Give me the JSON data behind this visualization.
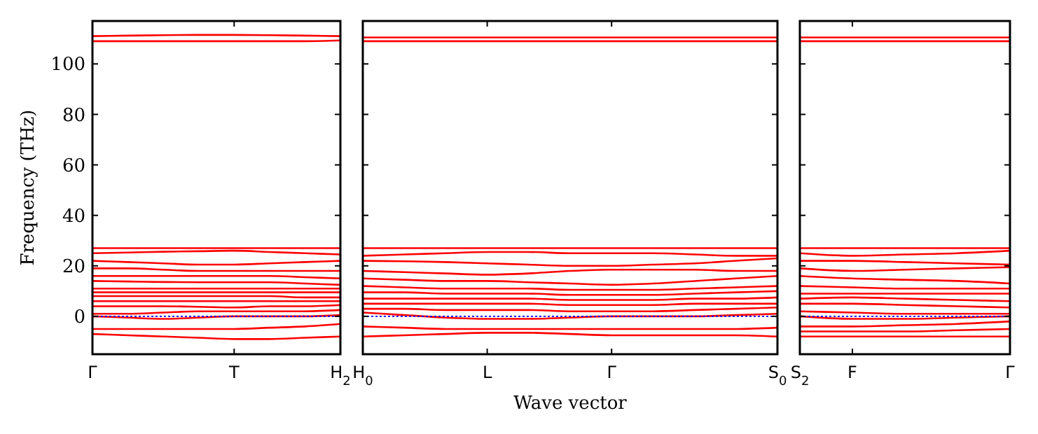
{
  "chart_data": [
    {
      "type": "line",
      "ylabel": "Frequency (THz)",
      "categories": [
        "Γ",
        null,
        null,
        null,
        "T",
        null,
        null,
        "H$_{2}$"
      ],
      "ylim": [
        -15,
        117
      ],
      "yticks": [
        0,
        20,
        40,
        60,
        80,
        100
      ],
      "ref_lines": [
        {
          "axis": "y",
          "value": 0,
          "color": "#0000ff",
          "line_style": "dotted"
        }
      ],
      "series": [
        {
          "color": "#ff0000",
          "values": [
            111,
            111.2,
            111.4,
            111.5,
            111.5,
            111.4,
            111.2,
            111
          ]
        },
        {
          "color": "#ff0000",
          "values": [
            109,
            109,
            109,
            109,
            109,
            109,
            109,
            109.3
          ]
        },
        {
          "color": "#ff0000",
          "values": [
            27,
            27,
            27,
            27,
            27,
            27,
            27,
            27
          ]
        },
        {
          "color": "#ff0000",
          "values": [
            25,
            25.3,
            25.6,
            25.8,
            26,
            25.5,
            25,
            24.5
          ]
        },
        {
          "color": "#ff0000",
          "values": [
            22,
            21.5,
            21,
            20.5,
            20.5,
            21,
            21.5,
            22
          ]
        },
        {
          "color": "#ff0000",
          "values": [
            19,
            19,
            18.5,
            18,
            18,
            18,
            18,
            18
          ]
        },
        {
          "color": "#ff0000",
          "values": [
            16,
            16,
            16,
            16,
            16,
            16,
            15.5,
            15
          ]
        },
        {
          "color": "#ff0000",
          "values": [
            14,
            13.8,
            13.6,
            13.5,
            13.5,
            13.5,
            13,
            12.5
          ]
        },
        {
          "color": "#ff0000",
          "values": [
            11,
            11,
            11,
            11,
            11,
            11,
            11,
            11
          ]
        },
        {
          "color": "#ff0000",
          "values": [
            9.5,
            9.5,
            9.5,
            9.5,
            9.5,
            9.5,
            9.5,
            9.5
          ]
        },
        {
          "color": "#ff0000",
          "values": [
            8,
            8,
            8,
            8,
            8,
            8,
            7.5,
            7.5
          ]
        },
        {
          "color": "#ff0000",
          "values": [
            6,
            6,
            6,
            6,
            6,
            6,
            6,
            6
          ]
        },
        {
          "color": "#ff0000",
          "values": [
            4,
            4,
            4,
            3.8,
            3.5,
            4,
            4,
            4.5
          ]
        },
        {
          "color": "#ff0000",
          "values": [
            1,
            1,
            1.5,
            2,
            2,
            2,
            2,
            2.5
          ]
        },
        {
          "color": "#ff0000",
          "values": [
            0,
            -0.5,
            -1,
            -0.5,
            0,
            0,
            0,
            0.5
          ]
        },
        {
          "color": "#ff0000",
          "values": [
            -5,
            -5,
            -5,
            -5,
            -5,
            -4.5,
            -4,
            -3
          ]
        },
        {
          "color": "#ff0000",
          "values": [
            -7,
            -7.5,
            -8,
            -8.5,
            -9,
            -9,
            -8.5,
            -8
          ]
        }
      ]
    },
    {
      "type": "line",
      "xlabel": "Wave vector",
      "tick_labels": "x",
      "categories": [
        "H$_{0}$",
        null,
        null,
        "L",
        null,
        null,
        "Γ",
        null,
        null,
        null,
        "S$_{0}$"
      ],
      "ylim": [
        -15,
        117
      ],
      "yticks": [
        0,
        20,
        40,
        60,
        80,
        100
      ],
      "ref_lines": [
        {
          "axis": "y",
          "value": 0,
          "color": "#0000ff",
          "line_style": "dotted"
        }
      ],
      "series": [
        {
          "color": "#ff0000",
          "values": [
            110.5,
            110.5,
            110.5,
            110.5,
            110.5,
            110.5,
            110.5,
            110.5,
            110.5,
            110.5,
            110.5
          ]
        },
        {
          "color": "#ff0000",
          "values": [
            109,
            109,
            109,
            109,
            109,
            109,
            109,
            109,
            109,
            109,
            109
          ]
        },
        {
          "color": "#ff0000",
          "values": [
            27,
            27,
            27,
            27,
            27,
            27,
            27,
            27,
            27,
            27,
            27
          ]
        },
        {
          "color": "#ff0000",
          "values": [
            24,
            24.5,
            25,
            25.5,
            25.5,
            25,
            25,
            25,
            24.5,
            24,
            24
          ]
        },
        {
          "color": "#ff0000",
          "values": [
            22,
            21.8,
            21.5,
            21,
            20.5,
            20,
            20,
            20.5,
            21,
            22,
            23
          ]
        },
        {
          "color": "#ff0000",
          "values": [
            18,
            17.5,
            17,
            16.5,
            17,
            18,
            18.5,
            18.5,
            18.5,
            18,
            18
          ]
        },
        {
          "color": "#ff0000",
          "values": [
            15,
            14.5,
            14,
            14,
            13.5,
            13,
            12.5,
            13,
            14,
            15,
            16
          ]
        },
        {
          "color": "#ff0000",
          "values": [
            12,
            11.5,
            11,
            11,
            11,
            10.5,
            10.5,
            10.5,
            11,
            11.5,
            12
          ]
        },
        {
          "color": "#ff0000",
          "values": [
            9.5,
            9.5,
            9,
            9,
            9,
            8.5,
            8.5,
            8.5,
            9,
            9.5,
            10
          ]
        },
        {
          "color": "#ff0000",
          "values": [
            7,
            7,
            7,
            7,
            7,
            6.5,
            6.5,
            6.5,
            7,
            7,
            7.5
          ]
        },
        {
          "color": "#ff0000",
          "values": [
            5,
            5,
            5,
            5,
            5,
            4.5,
            4.5,
            4.5,
            5,
            5,
            5
          ]
        },
        {
          "color": "#ff0000",
          "values": [
            3,
            3,
            2.5,
            2.5,
            2.5,
            2,
            2,
            2,
            2.5,
            3,
            3.5
          ]
        },
        {
          "color": "#ff0000",
          "values": [
            1.5,
            0.5,
            -0.5,
            -1,
            -1,
            -0.5,
            0,
            0,
            0,
            0.5,
            1
          ]
        },
        {
          "color": "#ff0000",
          "values": [
            -4,
            -4.5,
            -5,
            -5,
            -5,
            -5,
            -5,
            -5,
            -5,
            -5,
            -4.5
          ]
        },
        {
          "color": "#ff0000",
          "values": [
            -8,
            -7.5,
            -7,
            -6.5,
            -6.5,
            -7,
            -7.5,
            -7.5,
            -7.5,
            -7.5,
            -8
          ]
        }
      ]
    },
    {
      "type": "line",
      "tick_labels": "x",
      "categories": [
        "S$_{2}$",
        "F",
        null,
        null,
        "Γ"
      ],
      "ylim": [
        -15,
        117
      ],
      "yticks": [
        0,
        20,
        40,
        60,
        80,
        100
      ],
      "ref_lines": [
        {
          "axis": "y",
          "value": 0,
          "color": "#0000ff",
          "line_style": "dotted"
        }
      ],
      "series": [
        {
          "color": "#ff0000",
          "values": [
            110.5,
            110.5,
            110.5,
            110.5,
            110.5
          ]
        },
        {
          "color": "#ff0000",
          "values": [
            109,
            109,
            109,
            109,
            109
          ]
        },
        {
          "color": "#ff0000",
          "values": [
            27,
            27,
            27,
            27,
            27
          ]
        },
        {
          "color": "#ff0000",
          "values": [
            25,
            24,
            24.5,
            25,
            26
          ]
        },
        {
          "color": "#ff0000",
          "values": [
            22,
            22,
            21.5,
            21,
            20.5
          ]
        },
        {
          "color": "#ff0000",
          "values": [
            19,
            18,
            18.5,
            19,
            19.5
          ]
        },
        {
          "color": "#ff0000",
          "values": [
            16,
            15,
            14.5,
            14,
            13
          ]
        },
        {
          "color": "#ff0000",
          "values": [
            12,
            11.5,
            11,
            11,
            11
          ]
        },
        {
          "color": "#ff0000",
          "values": [
            9,
            9,
            9,
            9,
            9
          ]
        },
        {
          "color": "#ff0000",
          "values": [
            7,
            7.5,
            7,
            6.5,
            6
          ]
        },
        {
          "color": "#ff0000",
          "values": [
            5,
            5,
            4.5,
            4,
            3.5
          ]
        },
        {
          "color": "#ff0000",
          "values": [
            2,
            1.5,
            1,
            1,
            1
          ]
        },
        {
          "color": "#ff0000",
          "values": [
            0,
            -1,
            -1,
            -0.5,
            0
          ]
        },
        {
          "color": "#ff0000",
          "values": [
            -4,
            -4,
            -3.5,
            -3,
            -2
          ]
        },
        {
          "color": "#ff0000",
          "values": [
            -6,
            -6,
            -6,
            -5.5,
            -5
          ]
        },
        {
          "color": "#ff0000",
          "values": [
            -8,
            -8,
            -8,
            -8,
            -8
          ]
        }
      ]
    }
  ]
}
